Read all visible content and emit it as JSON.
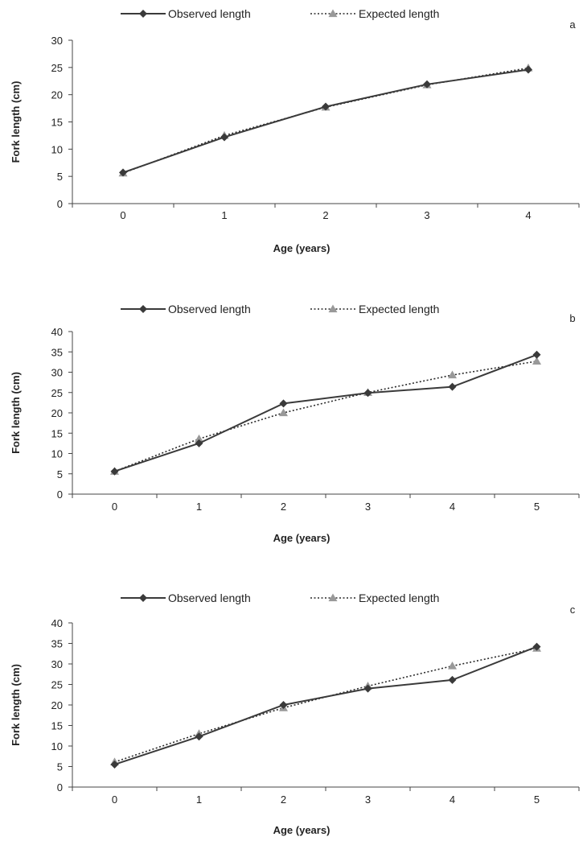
{
  "colors": {
    "observed": "#3a3a3a",
    "expected": "#999999",
    "expected_line": "#2a2a2a",
    "axis": "#444444"
  },
  "chart_data": [
    {
      "type": "line",
      "panel_label": "a",
      "x": [
        0,
        1,
        2,
        3,
        4
      ],
      "xlabel": "Age (years)",
      "ylabel": "Fork length (cm)",
      "ylim": [
        0,
        30
      ],
      "yticks": [
        0,
        5,
        10,
        15,
        20,
        25,
        30
      ],
      "grid": false,
      "legend_position": "top",
      "series": [
        {
          "name": "Observed length",
          "marker": "diamond",
          "line": "solid",
          "values": [
            5.7,
            12.2,
            17.8,
            21.9,
            24.6
          ]
        },
        {
          "name": "Expected length",
          "marker": "triangle",
          "line": "dotted",
          "values": [
            5.6,
            12.5,
            17.7,
            21.8,
            24.9
          ]
        }
      ]
    },
    {
      "type": "line",
      "panel_label": "b",
      "x": [
        0,
        1,
        2,
        3,
        4,
        5
      ],
      "xlabel": "Age (years)",
      "ylabel": "Fork length (cm)",
      "ylim": [
        0,
        40
      ],
      "yticks": [
        0,
        5,
        10,
        15,
        20,
        25,
        30,
        35,
        40
      ],
      "grid": false,
      "legend_position": "top",
      "series": [
        {
          "name": "Observed length",
          "marker": "diamond",
          "line": "solid",
          "values": [
            5.6,
            12.5,
            22.3,
            24.9,
            26.4,
            34.3
          ]
        },
        {
          "name": "Expected length",
          "marker": "triangle",
          "line": "dotted",
          "values": [
            5.6,
            13.6,
            20.0,
            25.0,
            29.3,
            32.7
          ]
        }
      ]
    },
    {
      "type": "line",
      "panel_label": "c",
      "x": [
        0,
        1,
        2,
        3,
        4,
        5
      ],
      "xlabel": "Age (years)",
      "ylabel": "Fork length (cm)",
      "ylim": [
        0,
        40
      ],
      "yticks": [
        0,
        5,
        10,
        15,
        20,
        25,
        30,
        35,
        40
      ],
      "grid": false,
      "legend_position": "top",
      "series": [
        {
          "name": "Observed length",
          "marker": "diamond",
          "line": "solid",
          "values": [
            5.5,
            12.3,
            20.0,
            24.0,
            26.1,
            34.2
          ]
        },
        {
          "name": "Expected length",
          "marker": "triangle",
          "line": "dotted",
          "values": [
            6.1,
            13.0,
            19.3,
            24.6,
            29.5,
            33.8
          ]
        }
      ]
    }
  ]
}
